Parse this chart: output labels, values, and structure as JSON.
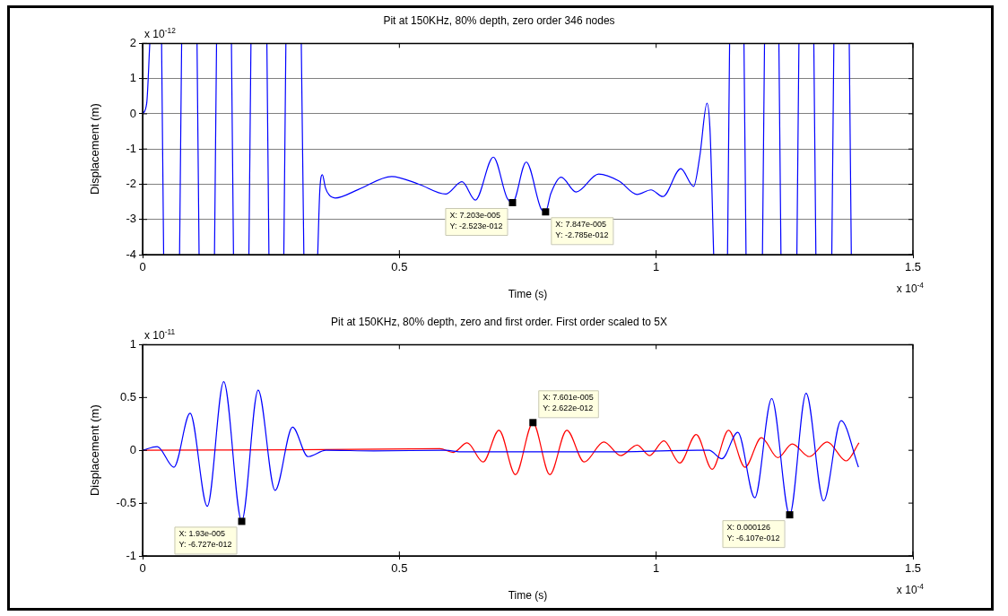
{
  "chart_data": [
    {
      "type": "line",
      "title": "Pit at 150KHz, 80% depth, zero order 346 nodes",
      "xlabel": "Time (s)",
      "ylabel": "Displacement (m)",
      "xlim": [
        0,
        1.5
      ],
      "xticks": [
        0,
        0.5,
        1,
        1.5
      ],
      "ylim": [
        -4,
        2
      ],
      "yticks": [
        -4,
        -3,
        -2,
        -1,
        0,
        1,
        2
      ],
      "grid": "y",
      "legend": false,
      "annotations": [
        "x 10$^{-12}$",
        "x 10$^{-4}$",
        {
          "text": "X: 7.203e-005\nY: -2.523e-012",
          "x": 0.7203,
          "y": -2.523
        },
        {
          "text": "X: 7.847e-005\nY: -2.785e-012",
          "x": 0.7847,
          "y": -2.785
        }
      ],
      "series": [
        {
          "color": "#0000ff",
          "x": [
            0,
            0.008,
            0.014,
            0.025,
            0.037,
            0.041,
            0.055,
            0.072,
            0.076,
            0.09,
            0.106,
            0.11,
            0.125,
            0.14,
            0.144,
            0.16,
            0.173,
            0.177,
            0.19,
            0.207,
            0.211,
            0.225,
            0.242,
            0.246,
            0.26,
            0.275,
            0.279,
            0.295,
            0.309,
            0.314,
            0.33,
            0.341,
            0.345,
            0.35,
            0.356,
            0.363,
            0.375,
            0.42,
            0.485,
            0.538,
            0.59,
            0.622,
            0.648,
            0.683,
            0.7096,
            0.7203,
            0.747,
            0.776,
            0.7847,
            0.795,
            0.815,
            0.844,
            0.888,
            0.928,
            0.963,
            0.99,
            1.013,
            1.048,
            1.073,
            1.085,
            1.099,
            1.105,
            1.112,
            1.125,
            1.139,
            1.143,
            1.155,
            1.171,
            1.175,
            1.19,
            1.207,
            1.211,
            1.225,
            1.239,
            1.243,
            1.26,
            1.274,
            1.278,
            1.29,
            1.307,
            1.311,
            1.325,
            1.342,
            1.346,
            1.36,
            1.376,
            1.38
          ],
          "values": [
            0,
            0.3,
            2,
            null,
            2,
            -4,
            null,
            -4,
            2,
            null,
            2,
            -4,
            null,
            -4,
            2,
            null,
            2,
            -4,
            null,
            -4,
            2,
            null,
            2,
            -4,
            null,
            -4,
            2,
            null,
            2,
            -4,
            null,
            -4,
            -2.2,
            -1.73,
            -2.1,
            -2.3,
            -2.39,
            -2.15,
            -1.78,
            -2.0,
            -2.28,
            -1.93,
            -2.45,
            -1.23,
            -2.39,
            -2.52,
            -1.37,
            -2.7,
            -2.78,
            -2.26,
            -1.8,
            -2.22,
            -1.71,
            -1.91,
            -2.29,
            -2.16,
            -2.35,
            -1.56,
            -2.06,
            -1.2,
            0.3,
            -0.5,
            -4,
            null,
            -4,
            2,
            null,
            2,
            -4,
            null,
            -4,
            2,
            null,
            2,
            -4,
            null,
            -4,
            2,
            null,
            2,
            -4,
            null,
            -4,
            2,
            null,
            2,
            -4
          ]
        }
      ]
    },
    {
      "type": "line",
      "title": "Pit at 150KHz, 80% depth, zero and first order. First order scaled to 5X",
      "xlabel": "Time (s)",
      "ylabel": "Displacement (m)",
      "xlim": [
        0,
        1.5
      ],
      "xticks": [
        0,
        0.5,
        1,
        1.5
      ],
      "ylim": [
        -1,
        1
      ],
      "yticks": [
        -1,
        -0.5,
        0,
        0.5,
        1
      ],
      "legend": false,
      "annotations": [
        "x 10$^{-11}$",
        "x 10$^{-4}$",
        {
          "text": "X: 1.93e-005\nY: -6.727e-012",
          "x": 0.193,
          "y": -0.6727
        },
        {
          "text": "X: 7.601e-005\nY: 2.622e-012",
          "x": 0.7601,
          "y": 0.2622
        },
        {
          "text": "X: 0.000126\nY: -6.107e-012",
          "x": 1.26,
          "y": -0.6107
        }
      ],
      "series": [
        {
          "color": "#0000ff",
          "x": [
            0,
            0.0285,
            0.061,
            0.0925,
            0.126,
            0.158,
            0.193,
            0.225,
            0.258,
            0.292,
            0.322,
            0.357,
            0.45,
            0.59,
            0.62,
            0.9,
            1.08,
            1.103,
            1.128,
            1.159,
            1.192,
            1.225,
            1.26,
            1.292,
            1.326,
            1.36,
            1.394
          ],
          "values": [
            0,
            0.035,
            -0.16,
            0.35,
            -0.53,
            0.65,
            -0.67,
            0.57,
            -0.38,
            0.22,
            -0.06,
            0,
            -0.005,
            0,
            -0.015,
            -0.015,
            0,
            0,
            -0.08,
            0.17,
            -0.45,
            0.49,
            -0.61,
            0.54,
            -0.48,
            0.28,
            -0.16
          ]
        },
        {
          "color": "#ff0000",
          "x": [
            0,
            0.3,
            0.579,
            0.605,
            0.632,
            0.663,
            0.694,
            0.726,
            0.7601,
            0.793,
            0.826,
            0.86,
            0.898,
            0.931,
            0.963,
            0.987,
            1.015,
            1.046,
            1.078,
            1.109,
            1.141,
            1.173,
            1.205,
            1.237,
            1.265,
            1.298,
            1.333,
            1.37,
            1.395
          ],
          "values": [
            0,
            0.005,
            0.015,
            -0.02,
            0.07,
            -0.11,
            0.19,
            -0.23,
            0.26,
            -0.23,
            0.19,
            -0.11,
            0.08,
            -0.05,
            0.05,
            -0.05,
            0.09,
            -0.12,
            0.15,
            -0.18,
            0.19,
            -0.16,
            0.12,
            -0.07,
            0.06,
            -0.06,
            0.08,
            -0.1,
            0.07
          ]
        }
      ]
    }
  ]
}
